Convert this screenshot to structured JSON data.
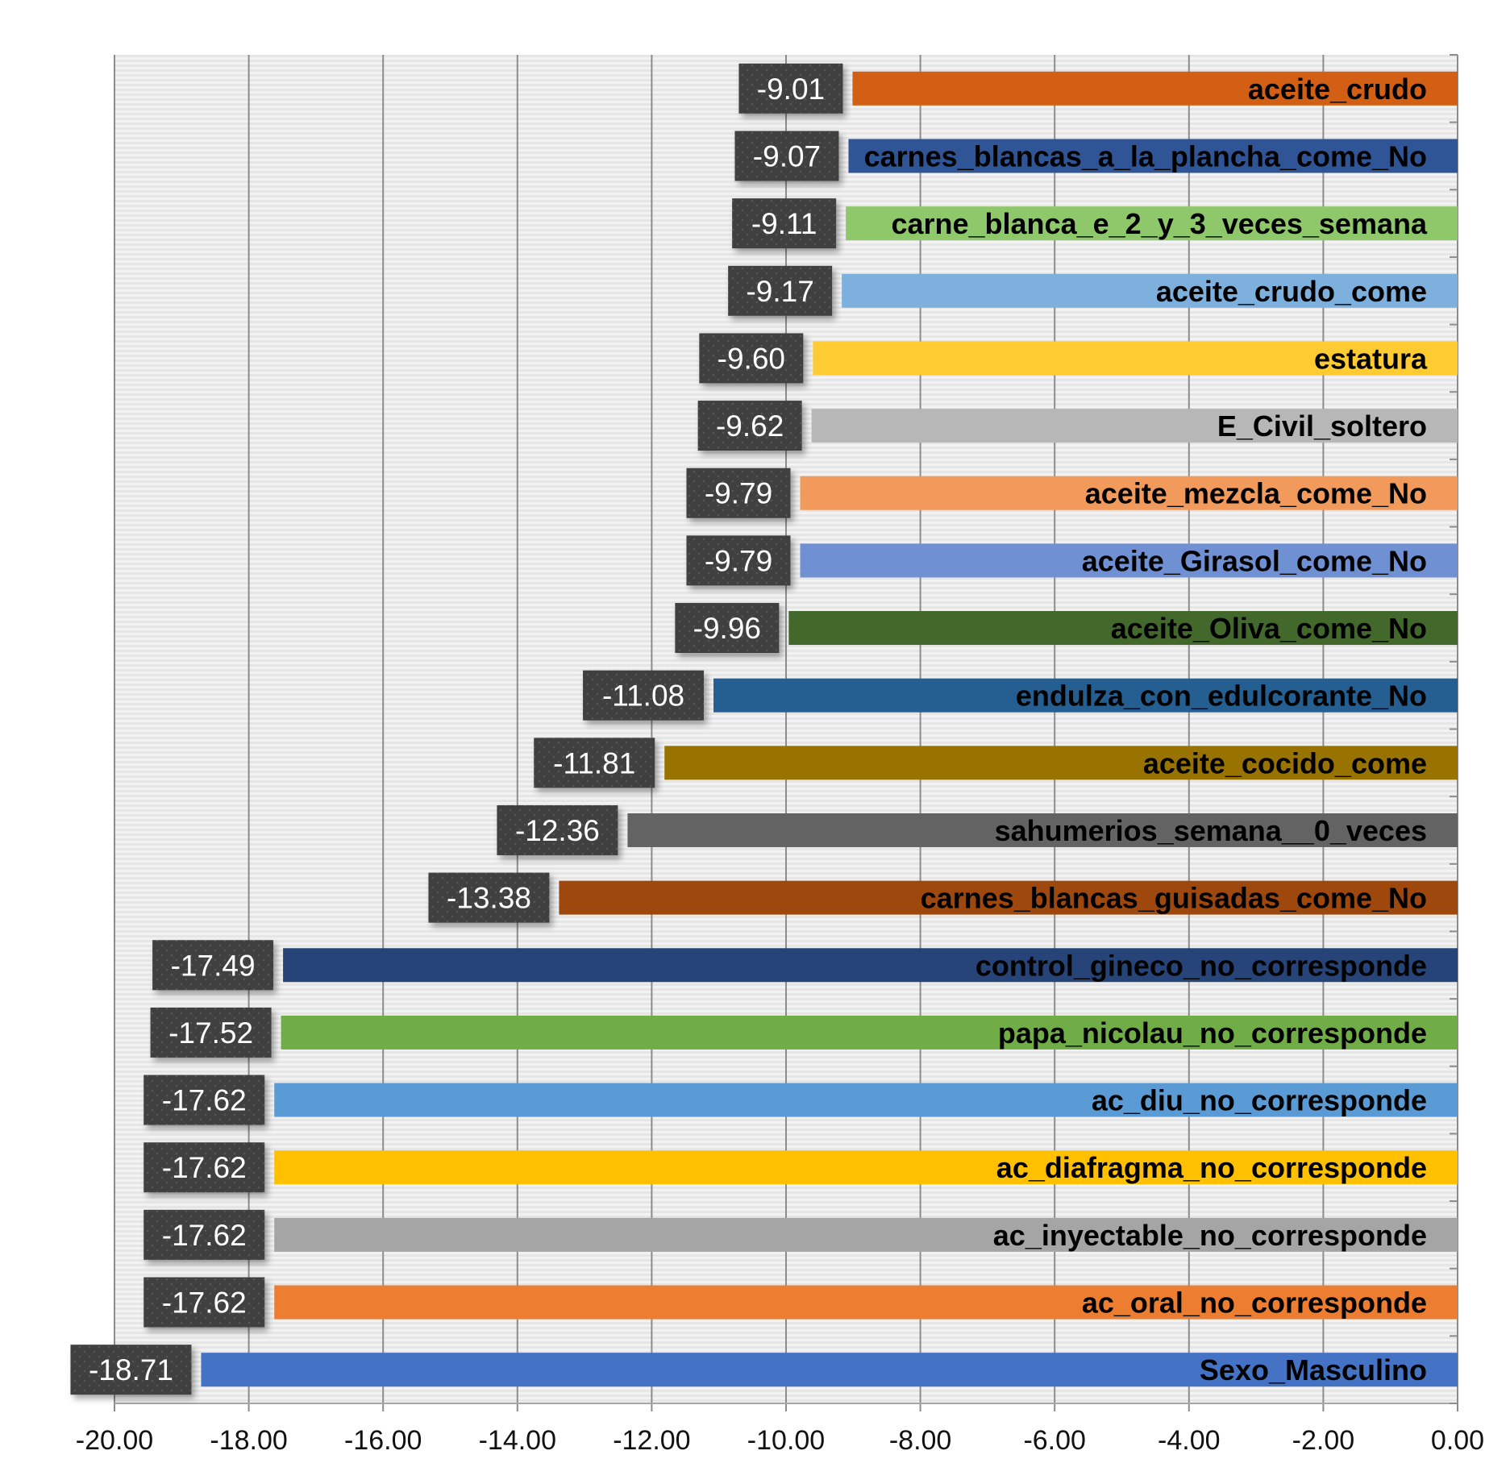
{
  "chart_data": {
    "type": "bar",
    "orientation": "horizontal",
    "title": "",
    "xlabel": "",
    "ylabel": "",
    "xlim": [
      -20,
      0
    ],
    "grid": true,
    "legend": "none",
    "x_ticks": [
      "-20.00",
      "-18.00",
      "-16.00",
      "-14.00",
      "-12.00",
      "-10.00",
      "-8.00",
      "-6.00",
      "-4.00",
      "-2.00",
      "0.00"
    ],
    "x_tick_values": [
      -20,
      -18,
      -16,
      -14,
      -12,
      -10,
      -8,
      -6,
      -4,
      -2,
      0
    ],
    "categories": [
      "aceite_crudo",
      "carnes_blancas_a_la_plancha_come_No",
      "carne_blanca_e_2_y_3_veces_semana",
      "aceite_crudo_come",
      "estatura",
      "E_Civil_soltero",
      "aceite_mezcla_come_No",
      "aceite_Girasol_come_No",
      "aceite_Oliva_come_No",
      "endulza_con_edulcorante_No",
      "aceite_cocido_come",
      "sahumerios_semana__0_veces",
      "carnes_blancas_guisadas_come_No",
      "control_gineco_no_corresponde",
      "papa_nicolau_no_corresponde",
      "ac_diu_no_corresponde",
      "ac_diafragma_no_corresponde",
      "ac_inyectable_no_corresponde",
      "ac_oral_no_corresponde",
      "Sexo_Masculino"
    ],
    "values": [
      -9.01,
      -9.07,
      -9.11,
      -9.17,
      -9.6,
      -9.62,
      -9.79,
      -9.79,
      -9.96,
      -11.08,
      -11.81,
      -12.36,
      -13.38,
      -17.49,
      -17.52,
      -17.62,
      -17.62,
      -17.62,
      -17.62,
      -18.71
    ],
    "value_labels": [
      "-9.01",
      "-9.07",
      "-9.11",
      "-9.17",
      "-9.60",
      "-9.62",
      "-9.79",
      "-9.79",
      "-9.96",
      "-11.08",
      "-11.81",
      "-12.36",
      "-13.38",
      "-17.49",
      "-17.52",
      "-17.62",
      "-17.62",
      "-17.62",
      "-17.62",
      "-18.71"
    ],
    "colors": [
      "#D35F14",
      "#2F5597",
      "#8FC86B",
      "#7EB0DE",
      "#FFCB33",
      "#B7B7B7",
      "#F19A5C",
      "#6F90D2",
      "#43682B",
      "#255E91",
      "#997300",
      "#636363",
      "#9E480E",
      "#264478",
      "#70AD47",
      "#5B9BD5",
      "#FFC000",
      "#A5A5A5",
      "#ED7D31",
      "#4472C4"
    ]
  }
}
